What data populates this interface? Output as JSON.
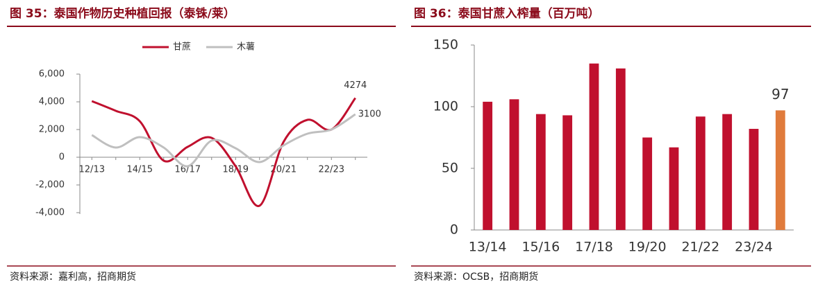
{
  "chart_data": [
    {
      "type": "line",
      "title": "图 35：泰国作物历史种植回报（泰铢/莱）",
      "source": "资料来源：嘉利高，招商期货",
      "categories": [
        "12/13",
        null,
        "14/15",
        null,
        "16/17",
        null,
        "18/19",
        null,
        "20/21",
        null,
        "22/23",
        null
      ],
      "series": [
        {
          "name": "甘蔗",
          "color": "#c0102e",
          "values": [
            4050,
            3350,
            2600,
            -250,
            750,
            1400,
            -650,
            -3500,
            1100,
            2700,
            2000,
            4274
          ]
        },
        {
          "name": "木薯",
          "color": "#bfbfbf",
          "values": [
            1600,
            700,
            1450,
            700,
            -650,
            1200,
            650,
            -350,
            850,
            1700,
            2000,
            3100
          ]
        }
      ],
      "ylim": [
        -4500,
        7000
      ],
      "yticks": [
        {
          "value": -4000,
          "label": "-4,000"
        },
        {
          "value": -2000,
          "label": "-2,000"
        },
        0,
        {
          "value": 2000,
          "label": "2,000"
        },
        {
          "value": 4000,
          "label": "4,000"
        },
        {
          "value": 6000,
          "label": "6,000"
        }
      ],
      "smooth": true,
      "data_labels": "last",
      "legend": "top"
    },
    {
      "type": "bar",
      "title": "图 36：泰国甘蔗入榨量（百万吨）",
      "source": "资料来源：OCSB，招商期货",
      "categories": [
        "13/14",
        null,
        "15/16",
        null,
        "17/18",
        null,
        "19/20",
        null,
        "21/22",
        null,
        "23/24",
        null
      ],
      "values": [
        104,
        106,
        94,
        93,
        135,
        131,
        75,
        67,
        92,
        94,
        82,
        97
      ],
      "colors": [
        "#c0102e",
        "#c0102e",
        "#c0102e",
        "#c0102e",
        "#c0102e",
        "#c0102e",
        "#c0102e",
        "#c0102e",
        "#c0102e",
        "#c0102e",
        "#c0102e",
        "#e07b3c"
      ],
      "ylim": [
        0,
        150
      ],
      "yticks": [
        0,
        50,
        100,
        150
      ],
      "data_labels": "last"
    }
  ]
}
